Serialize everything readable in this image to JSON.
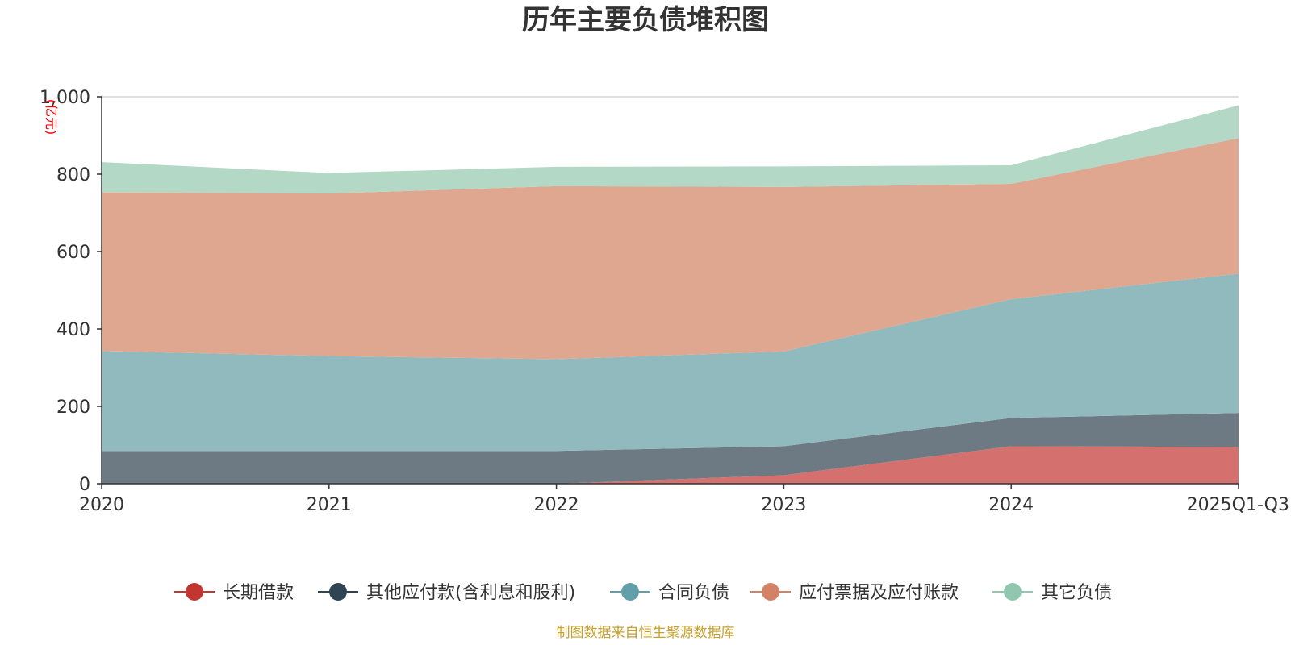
{
  "chart_data": {
    "type": "area",
    "stacked": true,
    "title": "历年主要负债堆积图",
    "unit_label": "(亿元)",
    "source": "制图数据来自恒生聚源数据库",
    "categories": [
      "2020",
      "2021",
      "2022",
      "2023",
      "2024",
      "2025Q1-Q3"
    ],
    "ylim": [
      0,
      1000
    ],
    "yticks": [
      "0",
      "200",
      "400",
      "600",
      "800",
      "1,000"
    ],
    "ytick_values": [
      0,
      200,
      400,
      600,
      800,
      1000
    ],
    "grid": true,
    "legend_position": "bottom",
    "series": [
      {
        "name": "长期借款",
        "color": "#c23531",
        "fill": "#d4706e",
        "values": [
          0,
          0,
          0,
          22,
          97,
          95
        ]
      },
      {
        "name": "其他应付款(含利息和股利)",
        "color": "#2f4554",
        "fill": "#6d7a84",
        "values": [
          85,
          85,
          85,
          75,
          73,
          88
        ]
      },
      {
        "name": "合同负债",
        "color": "#61a0a8",
        "fill": "#91babf",
        "values": [
          258,
          245,
          237,
          245,
          307,
          360
        ]
      },
      {
        "name": "应付票据及应付账款",
        "color": "#d48265",
        "fill": "#dfa690",
        "values": [
          410,
          420,
          447,
          425,
          298,
          350
        ]
      },
      {
        "name": "其它负债",
        "color": "#91c7ae",
        "fill": "#b3d8c6",
        "values": [
          78,
          53,
          50,
          53,
          48,
          85
        ]
      }
    ]
  }
}
